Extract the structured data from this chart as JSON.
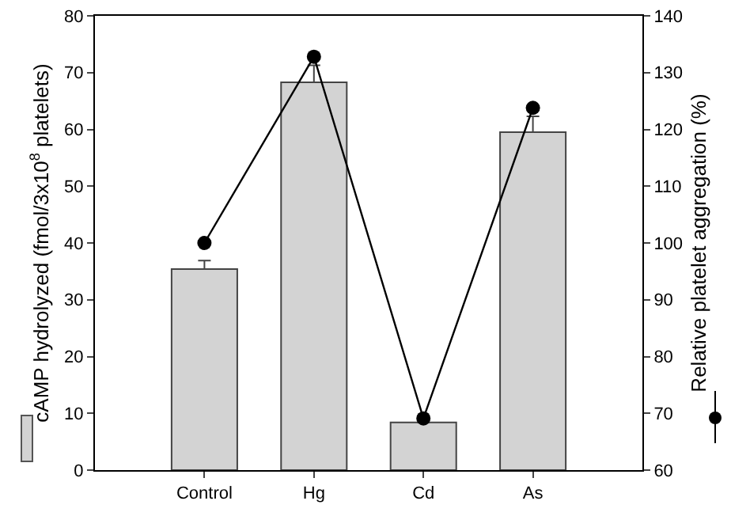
{
  "chart_data": {
    "type": "bar",
    "categories": [
      "Control",
      "Hg",
      "Cd",
      "As"
    ],
    "ylabel": "cAMP hydrolyzed (fmol/3x10$^{8}$ platelets)",
    "y2label": "Relative platelet aggregation (%)",
    "ylim": [
      0,
      80
    ],
    "yticks": [
      0,
      10,
      20,
      30,
      40,
      50,
      60,
      70,
      80
    ],
    "y2lim": [
      60,
      140
    ],
    "y2ticks": [
      60,
      70,
      80,
      90,
      100,
      110,
      120,
      130,
      140
    ],
    "grid": false,
    "legend": false,
    "series": [
      {
        "color": "#d3d3d3",
        "values": [
          35.4,
          68.3,
          8.4,
          59.5
        ],
        "errors": [
          1.5,
          3,
          0.5,
          2.8
        ]
      },
      {
        "type": "line",
        "axis": "y2",
        "color": "#000000",
        "marker": "circle",
        "line_style": "solid",
        "values": [
          100,
          132.8,
          69.1,
          123.8
        ]
      }
    ]
  }
}
